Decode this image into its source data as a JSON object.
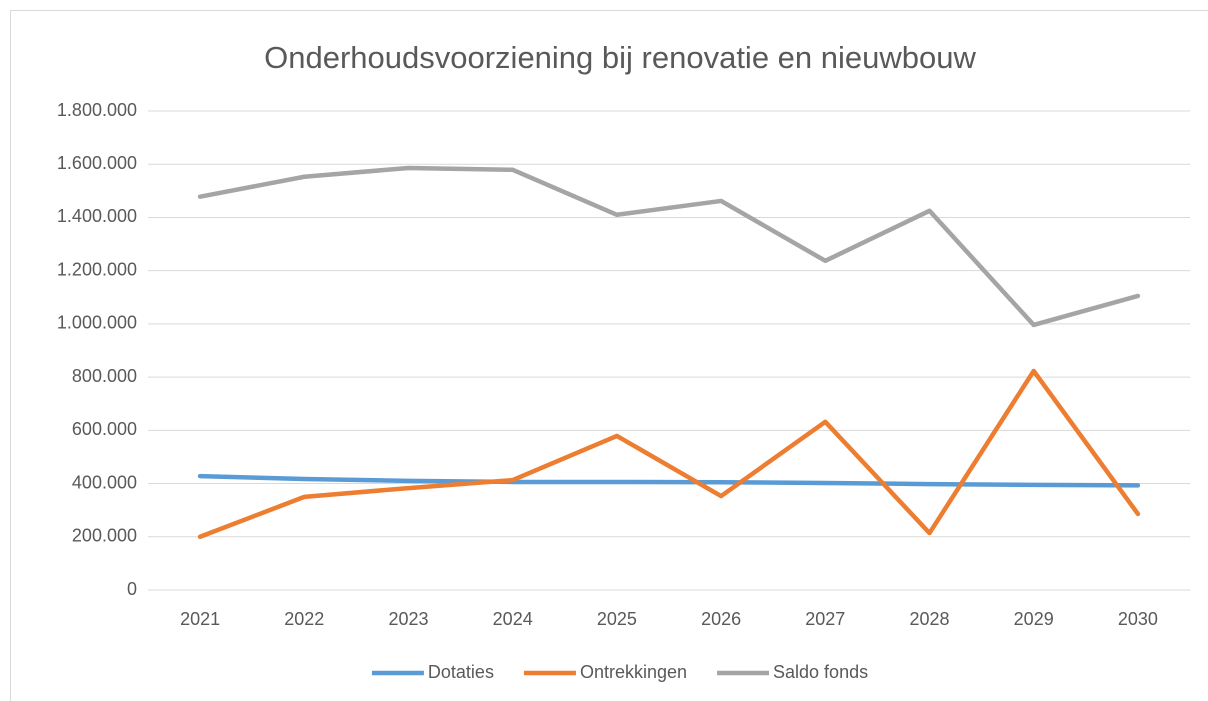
{
  "chart_data": {
    "type": "line",
    "title": "Onderhoudsvoorziening bij renovatie en nieuwbouw",
    "categories": [
      "2021",
      "2022",
      "2023",
      "2024",
      "2025",
      "2026",
      "2027",
      "2028",
      "2029",
      "2030"
    ],
    "series": [
      {
        "name": "Dotaties",
        "color": "#5b9bd5",
        "values": [
          428000,
          417000,
          410000,
          406000,
          406000,
          405000,
          402000,
          398000,
          395000,
          393000
        ]
      },
      {
        "name": "Ontrekkingen",
        "color": "#ed7d31",
        "values": [
          200000,
          350000,
          383000,
          413000,
          579000,
          353000,
          632000,
          214000,
          823000,
          286000
        ]
      },
      {
        "name": "Saldo fonds",
        "color": "#a5a5a5",
        "values": [
          1478000,
          1553000,
          1586000,
          1579000,
          1410000,
          1462000,
          1237000,
          1425000,
          996000,
          1105000
        ]
      }
    ],
    "ylim": [
      0,
      1800000
    ],
    "yticks": [
      0,
      {
        "value": 200000,
        "label": "200.000"
      },
      {
        "value": 400000,
        "label": "400.000"
      },
      {
        "value": 600000,
        "label": "600.000"
      },
      {
        "value": 800000,
        "label": "800.000"
      },
      {
        "value": 1000000,
        "label": "1.000.000"
      },
      {
        "value": 1200000,
        "label": "1.200.000"
      },
      {
        "value": 1400000,
        "label": "1.400.000"
      },
      {
        "value": 1600000,
        "label": "1.600.000"
      },
      {
        "value": 1800000,
        "label": "1.800.000"
      }
    ],
    "grid": true,
    "legend": "bottom"
  }
}
